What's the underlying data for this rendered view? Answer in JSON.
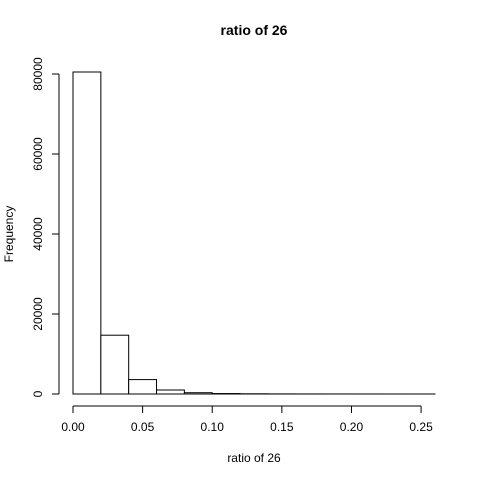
{
  "chart_data": {
    "type": "bar",
    "title": "ratio of 26",
    "xlabel": "ratio of 26",
    "ylabel": "Frequency",
    "bin_edges": [
      0.0,
      0.02,
      0.04,
      0.06,
      0.08,
      0.1,
      0.12,
      0.14,
      0.16,
      0.18,
      0.2,
      0.22,
      0.24,
      0.26
    ],
    "values": [
      80500,
      14700,
      3600,
      1000,
      320,
      110,
      50,
      25,
      12,
      8,
      5,
      3,
      2
    ],
    "xlim": [
      0,
      0.26
    ],
    "ylim": [
      0,
      80500
    ],
    "x_ticks": [
      {
        "value": 0.0,
        "label": "0.00"
      },
      {
        "value": 0.05,
        "label": "0.05"
      },
      {
        "value": 0.1,
        "label": "0.10"
      },
      {
        "value": 0.15,
        "label": "0.15"
      },
      {
        "value": 0.2,
        "label": "0.20"
      },
      {
        "value": 0.25,
        "label": "0.25"
      }
    ],
    "y_ticks": [
      {
        "value": 0,
        "label": "0"
      },
      {
        "value": 20000,
        "label": "20000"
      },
      {
        "value": 40000,
        "label": "40000"
      },
      {
        "value": 60000,
        "label": "60000"
      },
      {
        "value": 80000,
        "label": "80000"
      }
    ],
    "grid": false,
    "colors": {
      "bar_fill": "#ffffff",
      "bar_stroke": "#000000"
    }
  }
}
